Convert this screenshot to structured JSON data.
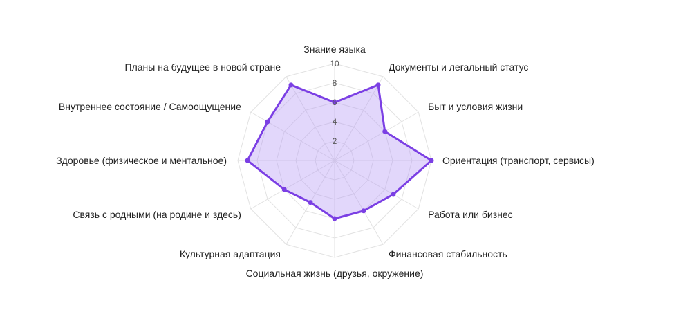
{
  "chart_data": {
    "type": "radar",
    "title": "",
    "categories": [
      "Знание языка",
      "Документы и легальный статус",
      "Быт и условия жизни",
      "Ориентация (транспорт, сервисы)",
      "Работа или бизнес",
      "Финансовая стабильность",
      "Социальная жизнь (друзья, окружение)",
      "Культурная адаптация",
      "Связь с родными (на родине и здесь)",
      "Здоровье (физическое и ментальное)",
      "Внутреннее состояние / Самоощущение",
      "Планы на будущее в новой стране"
    ],
    "series": [
      {
        "values": [
          6,
          9,
          6,
          10,
          7,
          6,
          6,
          5,
          6,
          9,
          8,
          9
        ]
      }
    ],
    "rlim": [
      0,
      10
    ],
    "ticks": [
      "2",
      "4",
      "6",
      "8",
      "10"
    ],
    "grid": true,
    "colors": {
      "line": "#7b3fe4",
      "fill": "rgba(180,150,245,0.38)",
      "grid": "#e2e2e2"
    }
  }
}
